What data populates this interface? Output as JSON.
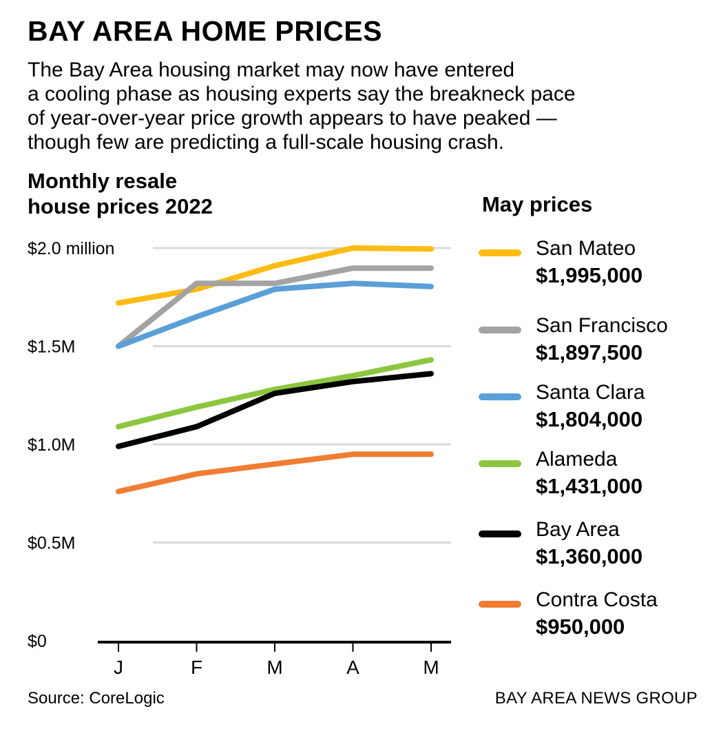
{
  "header": {
    "title": "BAY AREA HOME PRICES",
    "dek_lines": [
      "The Bay Area housing market may now have entered",
      "a cooling phase as housing experts say the breakneck pace",
      "of year-over-year price growth appears to have peaked —",
      "though few are predicting a full-scale housing crash."
    ]
  },
  "chart_title_lines": [
    "Monthly resale",
    "house prices 2022"
  ],
  "legend_title": "May prices",
  "footer": {
    "source": "Source: CoreLogic",
    "credit": "BAY AREA NEWS GROUP"
  },
  "chart_data": {
    "type": "line",
    "title": "Monthly resale house prices 2022",
    "x": [
      "J",
      "F",
      "M",
      "A",
      "M"
    ],
    "y_ticks": [
      {
        "value": 0,
        "label": "$0"
      },
      {
        "value": 0.5,
        "label": "$0.5M"
      },
      {
        "value": 1.0,
        "label": "$1.0M"
      },
      {
        "value": 1.5,
        "label": "$1.5M"
      },
      {
        "value": 2.0,
        "label": "$2.0 million"
      }
    ],
    "ylim": [
      0,
      2.0
    ],
    "grid": true,
    "legend_placement": "right",
    "series": [
      {
        "name": "San Mateo",
        "color": "#fdbb13",
        "may_label": "$1,995,000",
        "values": [
          1.72,
          1.79,
          1.91,
          2.0,
          1.995
        ]
      },
      {
        "name": "San Francisco",
        "color": "#a3a3a3",
        "may_label": "$1,897,500",
        "values": [
          1.5,
          1.82,
          1.82,
          1.8975,
          1.8975
        ]
      },
      {
        "name": "Santa Clara",
        "color": "#5a9fd8",
        "may_label": "$1,804,000",
        "values": [
          1.5,
          1.65,
          1.79,
          1.82,
          1.804
        ]
      },
      {
        "name": "Alameda",
        "color": "#8cc63f",
        "may_label": "$1,431,000",
        "values": [
          1.09,
          1.19,
          1.28,
          1.35,
          1.431
        ]
      },
      {
        "name": "Bay Area",
        "color": "#000000",
        "may_label": "$1,360,000",
        "values": [
          0.99,
          1.09,
          1.26,
          1.32,
          1.36
        ]
      },
      {
        "name": "Contra Costa",
        "color": "#f17d33",
        "may_label": "$950,000",
        "values": [
          0.76,
          0.85,
          0.9,
          0.95,
          0.95
        ]
      }
    ]
  }
}
